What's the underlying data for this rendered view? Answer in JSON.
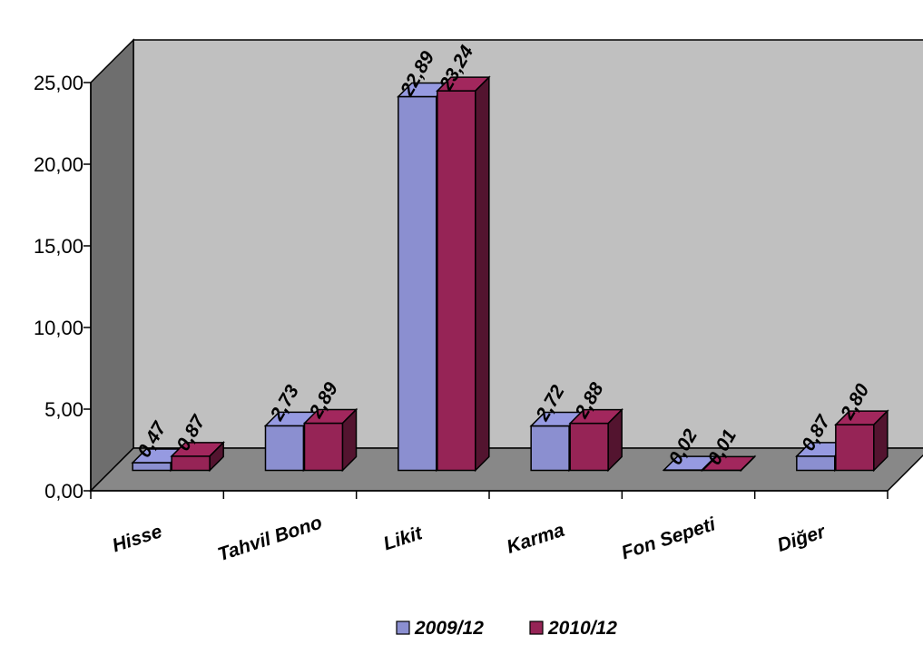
{
  "chart_data": {
    "type": "bar",
    "categories": [
      "Hisse",
      "Tahvil Bono",
      "Likit",
      "Karma",
      "Fon Sepeti",
      "Diğer"
    ],
    "series": [
      {
        "name": "2009/12",
        "values": [
          0.47,
          2.73,
          22.89,
          2.72,
          0.02,
          0.87
        ],
        "labels": [
          "0,47",
          "2,73",
          "22,89",
          "2,72",
          "0,02",
          "0,87"
        ],
        "color": "#8b8fd0"
      },
      {
        "name": "2010/12",
        "values": [
          0.87,
          2.89,
          23.24,
          2.88,
          0.01,
          2.8
        ],
        "labels": [
          "0,87",
          "2,89",
          "23,24",
          "2,88",
          "0,01",
          "2,80"
        ],
        "color": "#962456"
      }
    ],
    "yticks": [
      "0,00",
      "5,00",
      "10,00",
      "15,00",
      "20,00",
      "25,00"
    ],
    "ylim": [
      0,
      25
    ],
    "legend_position": "bottom",
    "grid": false,
    "colors": {
      "back_wall": "#c0c0c0",
      "side_wall": "#6e6e6e",
      "floor": "#888888"
    }
  }
}
